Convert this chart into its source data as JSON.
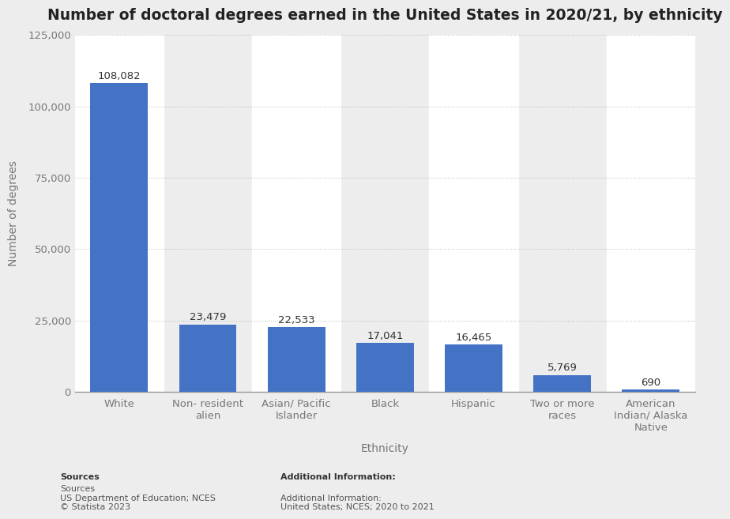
{
  "title": "Number of doctoral degrees earned in the United States in 2020/21, by ethnicity",
  "categories": [
    "White",
    "Non- resident\nalien",
    "Asian/ Pacific\nIslander",
    "Black",
    "Hispanic",
    "Two or more\nraces",
    "American\nIndian/ Alaska\nNative"
  ],
  "values": [
    108082,
    23479,
    22533,
    17041,
    16465,
    5769,
    690
  ],
  "bar_color": "#4472c4",
  "xlabel": "Ethnicity",
  "ylabel": "Number of degrees",
  "ylim": [
    0,
    125000
  ],
  "yticks": [
    0,
    25000,
    50000,
    75000,
    100000,
    125000
  ],
  "background_color": "#ededed",
  "plot_background_color": "#ededed",
  "col_band_color": "#ffffff",
  "title_fontsize": 13.5,
  "axis_label_fontsize": 10,
  "tick_fontsize": 9.5,
  "annotation_fontsize": 9.5,
  "source_text": "Sources\nUS Department of Education; NCES\n© Statista 2023",
  "additional_text": "Additional Information:\nUnited States; NCES; 2020 to 2021",
  "grid_color": "#bbbbbb",
  "label_color": "#777777",
  "annotation_color": "#333333"
}
